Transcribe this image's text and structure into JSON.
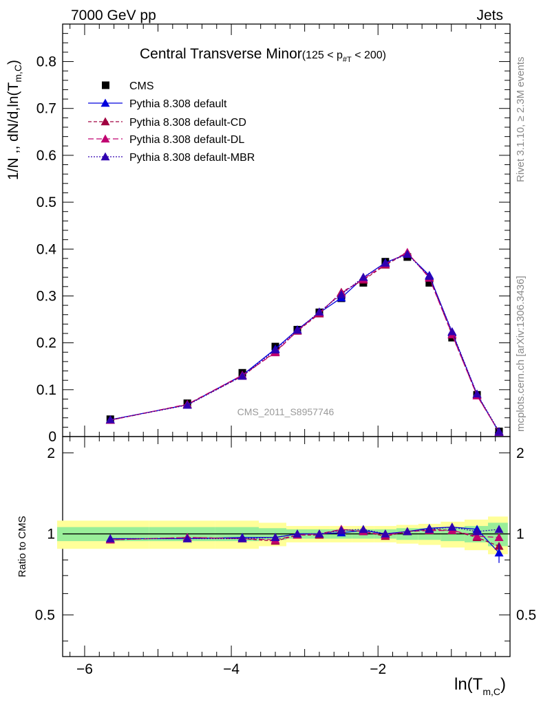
{
  "header": {
    "left": "7000 GeV pp",
    "right": "Jets"
  },
  "side_labels": {
    "rivet": "Rivet 3.1.10, ≥ 2.3M events",
    "mcplots": "mcplots.cern.ch [arXiv:1306.3436]"
  },
  "watermark": "CMS_2011_S8957746",
  "chart_data": [
    {
      "type": "line",
      "title": "Central Transverse Minor",
      "title_suffix": "(125 < p",
      "title_sub": "#T",
      "title_end": " < 200)",
      "ylabel": "1/N ,, dN/d,ln(T",
      "ylabel_sub": "m,C",
      "ylabel_end": ")",
      "xlim": [
        -6.3,
        -0.2
      ],
      "ylim": [
        0,
        0.88
      ],
      "yticks": [
        0,
        0.1,
        0.2,
        0.3,
        0.4,
        0.5,
        0.6,
        0.7,
        0.8
      ],
      "ytick_labels": [
        "0",
        "0.1",
        "0.2",
        "0.3",
        "0.4",
        "0.5",
        "0.6",
        "0.7",
        "0.8"
      ],
      "x": [
        -5.65,
        -4.6,
        -3.85,
        -3.4,
        -3.1,
        -2.8,
        -2.5,
        -2.2,
        -1.9,
        -1.6,
        -1.3,
        -0.99,
        -0.65,
        -0.35
      ],
      "cms": [
        0.037,
        0.071,
        0.136,
        0.192,
        0.228,
        0.265,
        0.295,
        0.328,
        0.373,
        0.383,
        0.328,
        0.211,
        0.089,
        0.011
      ],
      "series": [
        {
          "name": "Pythia 8.308 default",
          "color": "#0000dd",
          "dash": "",
          "values": [
            0.036,
            0.068,
            0.131,
            0.187,
            0.228,
            0.264,
            0.296,
            0.339,
            0.371,
            0.39,
            0.344,
            0.222,
            0.09,
            0.009
          ]
        },
        {
          "name": "Pythia 8.308 default-CD",
          "color": "#a00040",
          "dash": "5,3",
          "values": [
            0.035,
            0.068,
            0.129,
            0.181,
            0.225,
            0.262,
            0.308,
            0.334,
            0.366,
            0.392,
            0.34,
            0.217,
            0.088,
            0.01
          ]
        },
        {
          "name": "Pythia 8.308 default-DL",
          "color": "#c00070",
          "dash": "8,4",
          "values": [
            0.035,
            0.069,
            0.131,
            0.179,
            0.226,
            0.264,
            0.306,
            0.336,
            0.368,
            0.393,
            0.338,
            0.218,
            0.087,
            0.01
          ]
        },
        {
          "name": "Pythia 8.308 default-MBR",
          "color": "#3000b0",
          "dash": "2,2",
          "values": [
            0.036,
            0.067,
            0.129,
            0.185,
            0.227,
            0.266,
            0.303,
            0.34,
            0.37,
            0.389,
            0.342,
            0.224,
            0.091,
            0.011
          ]
        }
      ],
      "legend": [
        "CMS",
        "Pythia 8.308 default",
        "Pythia 8.308 default-CD",
        "Pythia 8.308 default-DL",
        "Pythia 8.308 default-MBR"
      ],
      "legend_placement": "top-left"
    },
    {
      "type": "line",
      "ylabel": "Ratio to CMS",
      "xlabel": "ln(T",
      "xlabel_sub": "m,C",
      "xlabel_end": ")",
      "ylim": [
        0.35,
        2.3
      ],
      "yticks": [
        0.5,
        1,
        2
      ],
      "ytick_labels": [
        "0.5",
        "1",
        "2"
      ],
      "xticks": [
        -6,
        -4,
        -2
      ],
      "xtick_labels": [
        "−6",
        "−4",
        "−2"
      ],
      "band_inner": [
        0.06,
        0.06,
        0.06,
        0.05,
        0.04,
        0.04,
        0.04,
        0.04,
        0.04,
        0.05,
        0.05,
        0.06,
        0.07,
        0.1
      ],
      "band_outer": [
        0.12,
        0.12,
        0.12,
        0.1,
        0.07,
        0.07,
        0.07,
        0.07,
        0.07,
        0.08,
        0.09,
        0.11,
        0.13,
        0.16
      ],
      "ratios": [
        [
          0.96,
          0.96,
          0.97,
          0.97,
          1.0,
          1.0,
          1.01,
          1.03,
          1.0,
          1.02,
          1.05,
          1.06,
          1.04,
          0.85
        ],
        [
          0.95,
          0.97,
          0.96,
          0.94,
          0.99,
          0.99,
          1.04,
          1.02,
          0.98,
          1.02,
          1.04,
          1.03,
          0.97,
          0.9
        ],
        [
          0.95,
          0.97,
          0.96,
          0.95,
          0.99,
          1.0,
          1.04,
          1.02,
          0.99,
          1.02,
          1.03,
          1.03,
          0.98,
          0.97
        ],
        [
          0.96,
          0.96,
          0.96,
          0.97,
          1.0,
          1.0,
          1.03,
          1.04,
          1.0,
          1.02,
          1.04,
          1.06,
          1.02,
          1.04
        ]
      ]
    }
  ]
}
